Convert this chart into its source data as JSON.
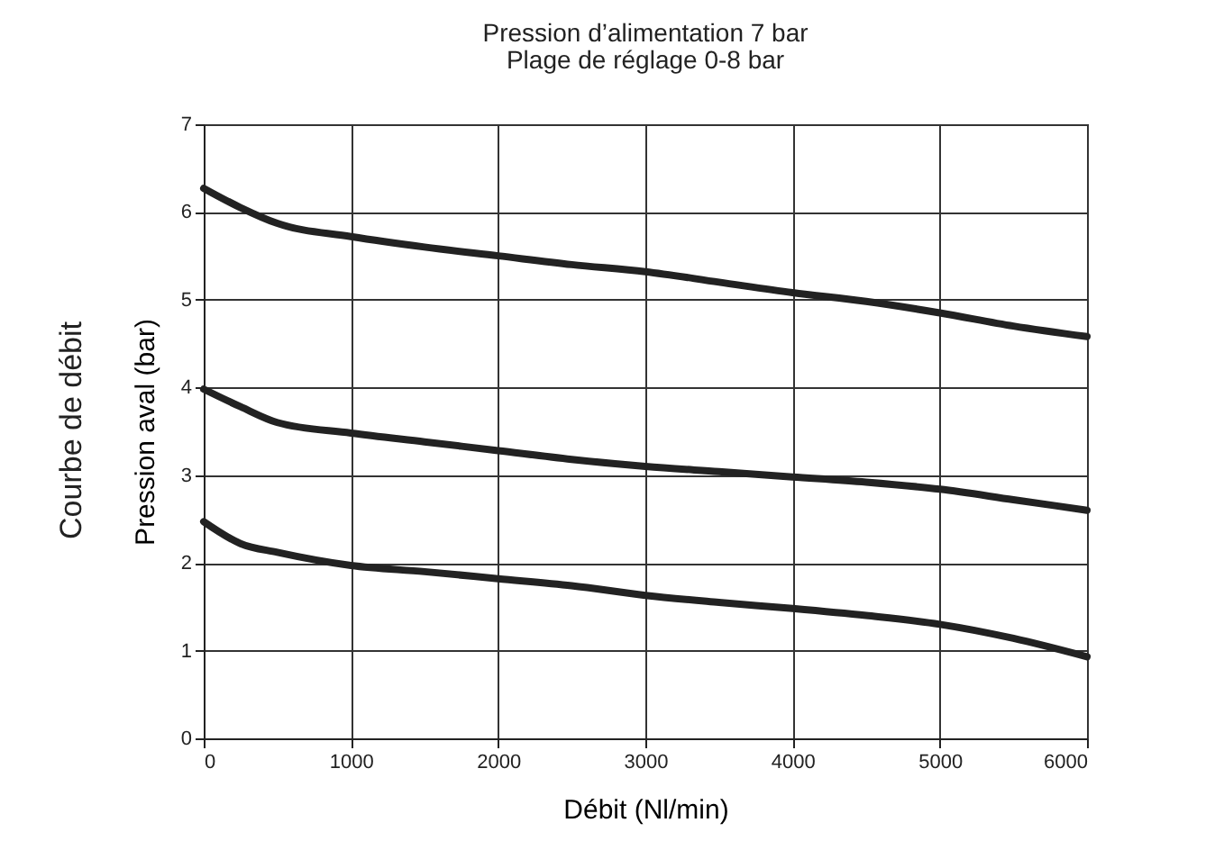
{
  "chart_data": {
    "type": "line",
    "title": "Pression d’alimentation 7 bar",
    "subtitle": "Plage de réglage 0-8 bar",
    "xlabel": "Débit (Nl/min)",
    "ylabel": "Pression aval (bar)",
    "annotations": [
      "Courbe de débit"
    ],
    "x": [
      0,
      250,
      500,
      1000,
      1500,
      2000,
      2500,
      3000,
      3500,
      4000,
      4500,
      5000,
      5500,
      6000
    ],
    "series": [
      {
        "color": "#222222",
        "values": [
          6.27,
          6.05,
          5.87,
          5.72,
          5.6,
          5.5,
          5.4,
          5.32,
          5.2,
          5.08,
          4.98,
          4.85,
          4.7,
          4.58
        ]
      },
      {
        "color": "#222222",
        "values": [
          3.98,
          3.78,
          3.6,
          3.48,
          3.38,
          3.28,
          3.18,
          3.1,
          3.04,
          2.98,
          2.92,
          2.84,
          2.72,
          2.6
        ]
      },
      {
        "color": "#222222",
        "values": [
          2.47,
          2.22,
          2.12,
          1.97,
          1.9,
          1.82,
          1.74,
          1.63,
          1.55,
          1.48,
          1.4,
          1.3,
          1.14,
          0.93
        ]
      }
    ],
    "xlim": [
      0,
      6000
    ],
    "xticks": [
      0,
      1000,
      2000,
      3000,
      4000,
      5000,
      6000
    ],
    "ylim": [
      0,
      7
    ],
    "yticks": [
      0,
      1,
      2,
      3,
      4,
      5,
      6,
      7
    ],
    "grid": true,
    "marker": "none",
    "line_style": "solid"
  }
}
